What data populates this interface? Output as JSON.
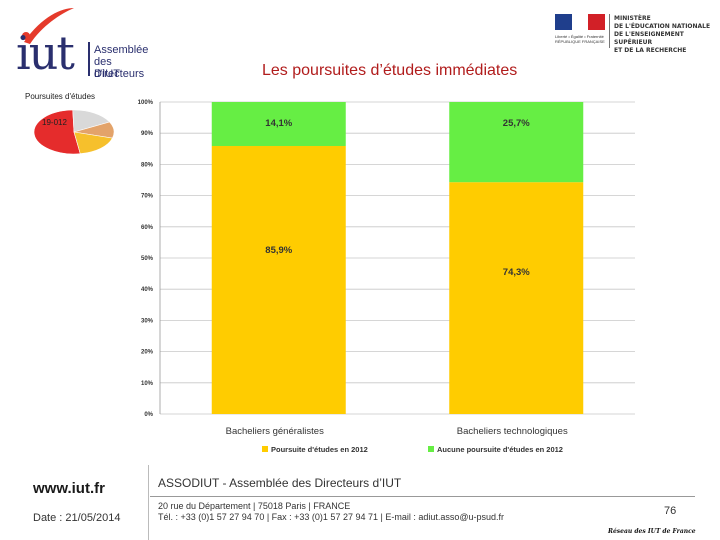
{
  "logo": {
    "word": "iut",
    "lines": [
      "Assemblée",
      "des Directeurs",
      "d'IUT"
    ]
  },
  "ministry": {
    "caption": "Liberté • Égalité • Fraternité RÉPUBLIQUE FRANÇAISE",
    "lines": [
      "MINISTÈRE",
      "DE L'ÉDUCATION NATIONALE",
      "DE L'ENSEIGNEMENT SUPÉRIEUR",
      "ET DE LA RECHERCHE"
    ],
    "colors": {
      "blue": "#1f3e8c",
      "white": "#ffffff",
      "red": "#d22027"
    }
  },
  "title": "Les poursuites d’études immédiates",
  "thumbnail": {
    "title": "Poursuites d'études",
    "year": "19-012",
    "slices": [
      {
        "value": 52,
        "color": "#e52c2c"
      },
      {
        "value": 18,
        "color": "#d9d9d9"
      },
      {
        "value": 12,
        "color": "#e3a36a"
      },
      {
        "value": 18,
        "color": "#f6c02c"
      }
    ]
  },
  "chart_data": {
    "type": "bar",
    "stacked": true,
    "categories": [
      "Bacheliers généralistes",
      "Bacheliers technologiques"
    ],
    "series": [
      {
        "name": "Poursuite d'études en 2012",
        "values": [
          85.9,
          74.3
        ],
        "labels": [
          "85,9%",
          "74,3%"
        ],
        "color": "#ffcc00"
      },
      {
        "name": "Aucune poursuite d'études en 2012",
        "values": [
          14.1,
          25.7
        ],
        "labels": [
          "14,1%",
          "25,7%"
        ],
        "color": "#66ee44"
      }
    ],
    "ylim": [
      0,
      100
    ],
    "yticks": [
      "0%",
      "10%",
      "20%",
      "30%",
      "40%",
      "50%",
      "60%",
      "70%",
      "80%",
      "90%",
      "100%"
    ],
    "grid": true,
    "legend": "bottom"
  },
  "footer": {
    "site": "www.iut.fr",
    "date": "Date : 21/05/2014",
    "assoc": "ASSODIUT - Assemblée des Directeurs d’IUT",
    "address": "20 rue du Département | 75018 Paris | FRANCE",
    "contact": "Tél. : +33 (0)1 57 27 94 70 | Fax : +33 (0)1 57 27 94 71 | E-mail : adiut.asso@u-psud.fr",
    "page": "76",
    "network": "Réseau des IUT de France"
  }
}
